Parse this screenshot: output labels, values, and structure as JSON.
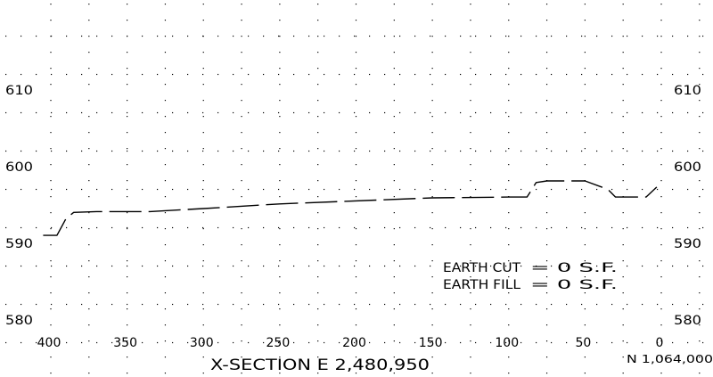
{
  "chart_data": {
    "type": "line",
    "title": "X-SECTION E 2,480,950",
    "northing_label": "N 1,064,000",
    "x_ticks": [
      400,
      350,
      300,
      250,
      200,
      150,
      100,
      50,
      0
    ],
    "y_ticks": [
      580,
      590,
      600,
      610
    ],
    "xlim": [
      405,
      0
    ],
    "ylim": [
      578,
      622
    ],
    "grid": "dotted",
    "series": [
      {
        "style": "dashed",
        "points": [
          [
            405,
            591.5
          ],
          [
            396,
            591.5
          ],
          [
            390,
            593.7
          ],
          [
            385,
            594.5
          ],
          [
            370,
            594.6
          ],
          [
            335,
            594.6
          ],
          [
            300,
            595.0
          ],
          [
            250,
            595.6
          ],
          [
            150,
            596.4
          ],
          [
            100,
            596.5
          ],
          [
            88,
            596.5
          ],
          [
            82,
            598.4
          ],
          [
            75,
            598.6
          ],
          [
            50,
            598.6
          ],
          [
            35,
            597.5
          ],
          [
            30,
            596.5
          ],
          [
            10,
            596.5
          ],
          [
            3,
            597.8
          ]
        ]
      }
    ],
    "annotations": [
      {
        "id": "cut",
        "label": "EARTH CUT",
        "value": "= 0 S.F."
      },
      {
        "id": "fill",
        "label": "EARTH FILL",
        "value": "= 0 S.F."
      }
    ]
  }
}
